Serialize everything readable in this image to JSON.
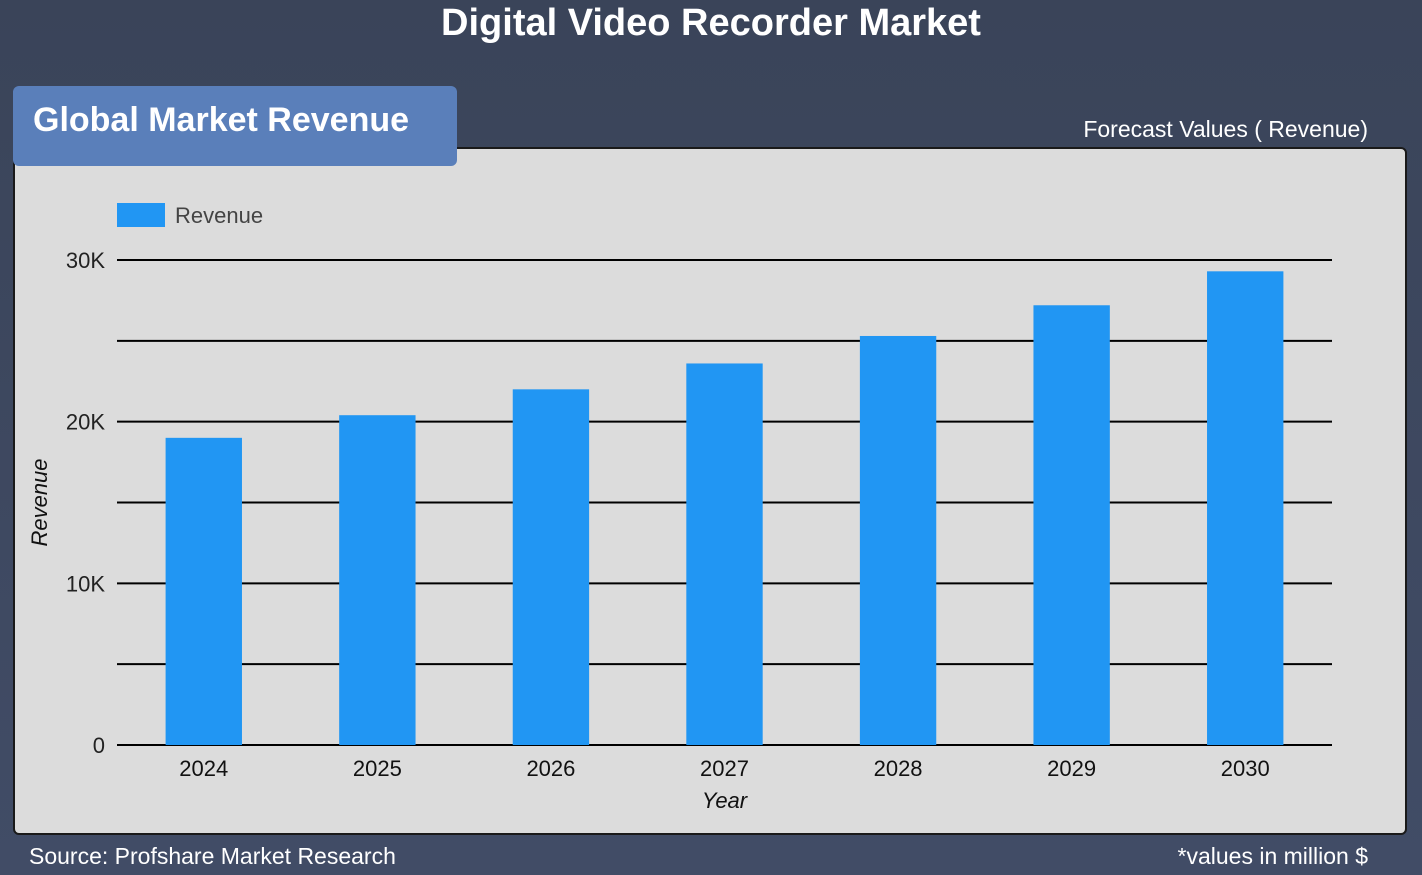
{
  "page_title": "Digital Video Recorder Market",
  "section_badge": "Global Market Revenue",
  "forecast_label": "Forecast Values ( Revenue)",
  "footer": {
    "source": "Source: Profshare Market Research",
    "units_note": "*values in million $"
  },
  "colors": {
    "bar": "#2196f3",
    "panel": "#dcdcdc",
    "badge": "#5a7fba",
    "gridline": "#000000"
  },
  "chart_data": {
    "type": "bar",
    "categories": [
      "2024",
      "2025",
      "2026",
      "2027",
      "2028",
      "2029",
      "2030"
    ],
    "series": [
      {
        "name": "Revenue",
        "values": [
          19000,
          20400,
          22000,
          23600,
          25300,
          27200,
          29300
        ]
      }
    ],
    "xlabel": "Year",
    "ylabel": "Revenue",
    "ylim": [
      0,
      30000
    ],
    "yticks": [
      0,
      10000,
      20000,
      30000
    ],
    "ytick_labels": [
      "0",
      "10K",
      "20K",
      "30K"
    ],
    "gridlines": [
      0,
      5000,
      10000,
      15000,
      20000,
      25000,
      30000
    ],
    "grid": true,
    "legend": "top-left"
  }
}
